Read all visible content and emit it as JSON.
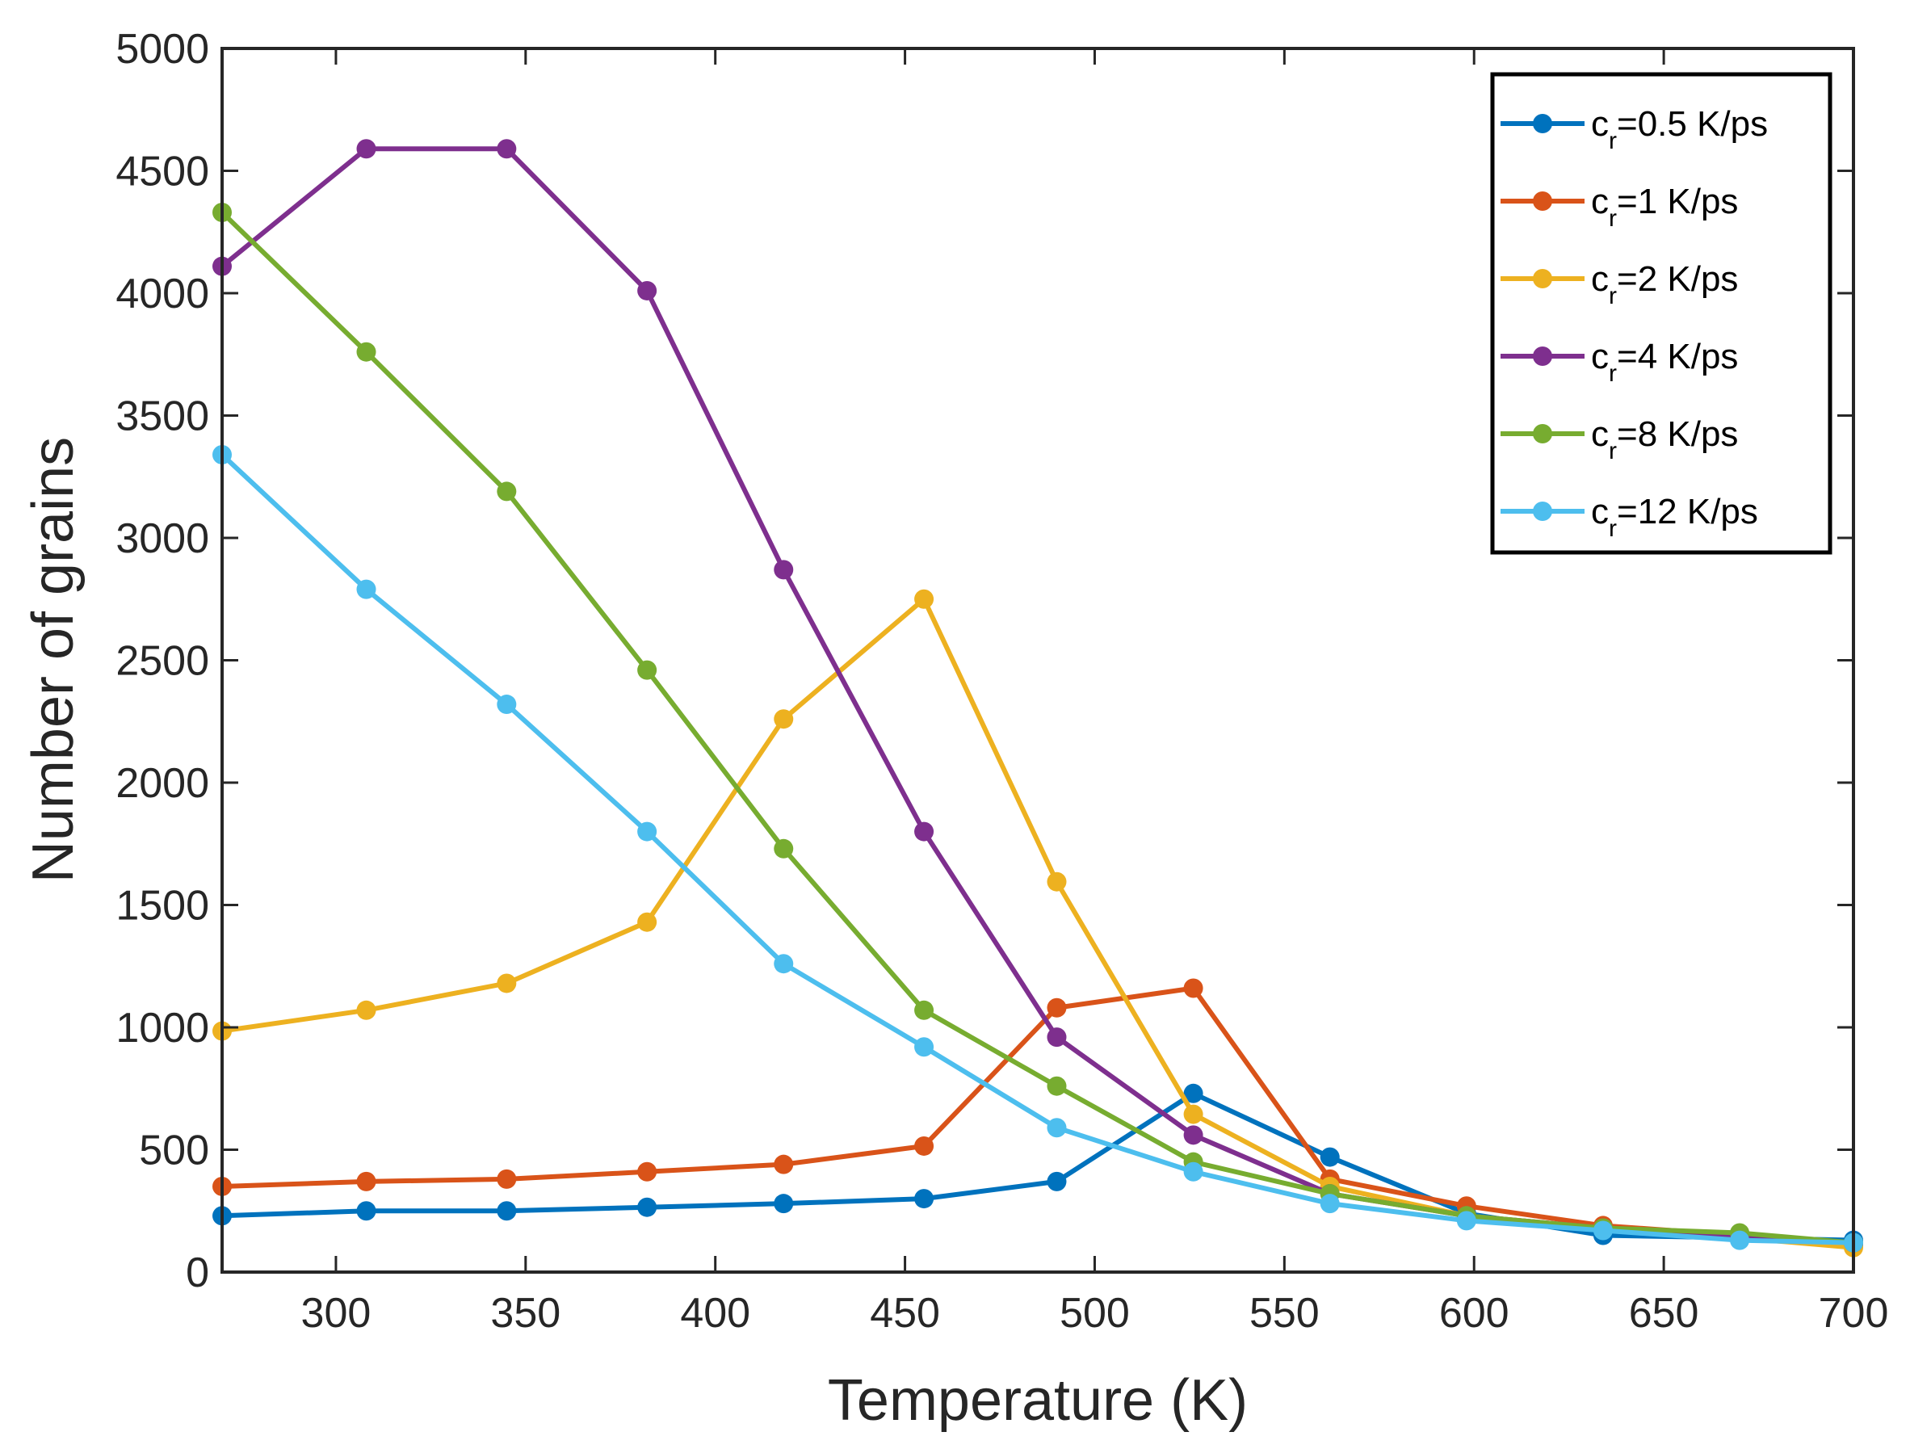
{
  "chart_data": {
    "type": "line",
    "title": "",
    "xlabel": "Temperature (K)",
    "ylabel": "Number of grains",
    "xlim": [
      270,
      700
    ],
    "ylim": [
      0,
      5000
    ],
    "xticks": [
      300,
      350,
      400,
      450,
      500,
      550,
      600,
      650,
      700
    ],
    "yticks": [
      0,
      500,
      1000,
      1500,
      2000,
      2500,
      3000,
      3500,
      4000,
      4500,
      5000
    ],
    "grid": false,
    "legend_position": "top-right",
    "x": [
      270,
      308,
      345,
      382,
      418,
      455,
      490,
      526,
      562,
      598,
      634,
      670,
      700
    ],
    "series": [
      {
        "name": "cr=0.5 K/ps",
        "label_base": "c",
        "label_sub": "r",
        "label_rest": "=0.5 K/ps",
        "color": "#0072BD",
        "values": [
          230,
          250,
          250,
          265,
          280,
          300,
          370,
          730,
          470,
          240,
          150,
          140,
          130
        ]
      },
      {
        "name": "cr=1 K/ps",
        "label_base": "c",
        "label_sub": "r",
        "label_rest": "=1 K/ps",
        "color": "#D95319",
        "values": [
          350,
          370,
          380,
          410,
          440,
          515,
          1080,
          1160,
          380,
          270,
          190,
          150,
          110
        ]
      },
      {
        "name": "cr=2 K/ps",
        "label_base": "c",
        "label_sub": "r",
        "label_rest": "=2 K/ps",
        "color": "#EDB120",
        "values": [
          985,
          1070,
          1180,
          1430,
          2260,
          2750,
          1595,
          645,
          350,
          230,
          180,
          140,
          100
        ]
      },
      {
        "name": "cr=4 K/ps",
        "label_base": "c",
        "label_sub": "r",
        "label_rest": "=4 K/ps",
        "color": "#7E2F8E",
        "values": [
          4110,
          4590,
          4590,
          4010,
          2870,
          1800,
          960,
          560,
          320,
          230,
          180,
          150,
          120
        ]
      },
      {
        "name": "cr=8 K/ps",
        "label_base": "c",
        "label_sub": "r",
        "label_rest": "=8 K/ps",
        "color": "#77AC30",
        "values": [
          4330,
          3760,
          3190,
          2460,
          1730,
          1070,
          760,
          450,
          320,
          230,
          180,
          160,
          120
        ]
      },
      {
        "name": "cr=12 K/ps",
        "label_base": "c",
        "label_sub": "r",
        "label_rest": "=12 K/ps",
        "color": "#4DBEEE",
        "values": [
          3340,
          2790,
          2320,
          1800,
          1260,
          920,
          590,
          410,
          280,
          210,
          170,
          130,
          120
        ]
      }
    ]
  }
}
